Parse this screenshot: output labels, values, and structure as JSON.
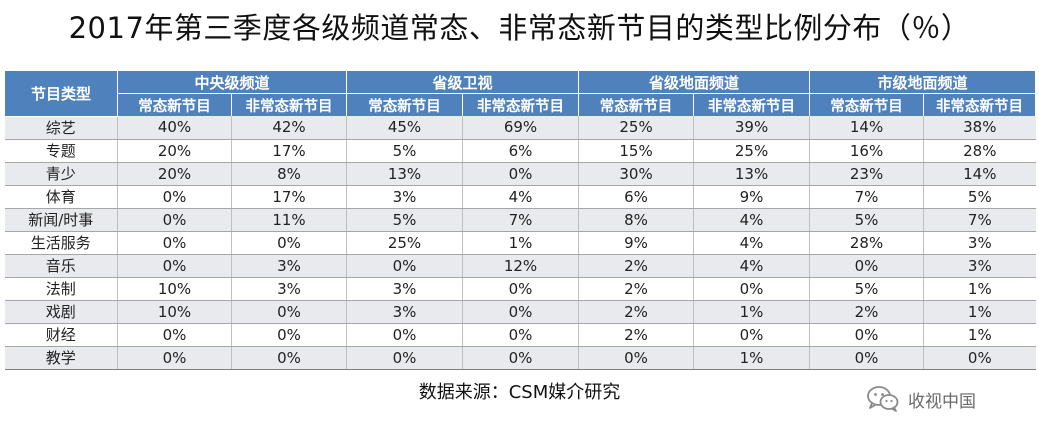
{
  "title": "2017年第三季度各级频道常态、非常态新节目的类型比例分布（％）",
  "table": {
    "corner_label": "节目类型",
    "groups": [
      "中央级频道",
      "省级卫视",
      "省级地面频道",
      "市级地面频道"
    ],
    "subheaders": [
      "常态新节目",
      "非常态新节目",
      "常态新节目",
      "非常态新节目",
      "常态新节目",
      "非常态新节目",
      "常态新节目",
      "非常态新节目"
    ],
    "rows": [
      {
        "label": "综艺",
        "cells": [
          "40%",
          "42%",
          "45%",
          "69%",
          "25%",
          "39%",
          "14%",
          "38%"
        ]
      },
      {
        "label": "专题",
        "cells": [
          "20%",
          "17%",
          "5%",
          "6%",
          "15%",
          "25%",
          "16%",
          "28%"
        ]
      },
      {
        "label": "青少",
        "cells": [
          "20%",
          "8%",
          "13%",
          "0%",
          "30%",
          "13%",
          "23%",
          "14%"
        ]
      },
      {
        "label": "体育",
        "cells": [
          "0%",
          "17%",
          "3%",
          "4%",
          "6%",
          "9%",
          "7%",
          "5%"
        ]
      },
      {
        "label": "新闻/时事",
        "cells": [
          "0%",
          "11%",
          "5%",
          "7%",
          "8%",
          "4%",
          "5%",
          "7%"
        ]
      },
      {
        "label": "生活服务",
        "cells": [
          "0%",
          "0%",
          "25%",
          "1%",
          "9%",
          "4%",
          "28%",
          "3%"
        ]
      },
      {
        "label": "音乐",
        "cells": [
          "0%",
          "3%",
          "0%",
          "12%",
          "2%",
          "4%",
          "0%",
          "3%"
        ]
      },
      {
        "label": "法制",
        "cells": [
          "10%",
          "3%",
          "3%",
          "0%",
          "2%",
          "0%",
          "5%",
          "1%"
        ]
      },
      {
        "label": "戏剧",
        "cells": [
          "10%",
          "0%",
          "3%",
          "0%",
          "2%",
          "1%",
          "2%",
          "1%"
        ]
      },
      {
        "label": "财经",
        "cells": [
          "0%",
          "0%",
          "0%",
          "0%",
          "2%",
          "0%",
          "0%",
          "1%"
        ]
      },
      {
        "label": "教学",
        "cells": [
          "0%",
          "0%",
          "0%",
          "0%",
          "0%",
          "1%",
          "0%",
          "0%"
        ]
      }
    ]
  },
  "chart_data": {
    "type": "table",
    "title": "2017年第三季度各级频道常态、非常态新节目的类型比例分布（％）",
    "row_header": "节目类型",
    "column_groups": [
      "中央级频道",
      "省级卫视",
      "省级地面频道",
      "市级地面频道"
    ],
    "columns": [
      "常态新节目",
      "非常态新节目"
    ],
    "categories": [
      "综艺",
      "专题",
      "青少",
      "体育",
      "新闻/时事",
      "生活服务",
      "音乐",
      "法制",
      "戏剧",
      "财经",
      "教学"
    ],
    "series": [
      {
        "name": "中央级频道 常态新节目",
        "values": [
          40,
          20,
          20,
          0,
          0,
          0,
          0,
          10,
          10,
          0,
          0
        ]
      },
      {
        "name": "中央级频道 非常态新节目",
        "values": [
          42,
          17,
          8,
          17,
          11,
          0,
          3,
          3,
          0,
          0,
          0
        ]
      },
      {
        "name": "省级卫视 常态新节目",
        "values": [
          45,
          5,
          13,
          3,
          5,
          25,
          0,
          3,
          3,
          0,
          0
        ]
      },
      {
        "name": "省级卫视 非常态新节目",
        "values": [
          69,
          6,
          0,
          4,
          7,
          1,
          12,
          0,
          0,
          0,
          0
        ]
      },
      {
        "name": "省级地面频道 常态新节目",
        "values": [
          25,
          15,
          30,
          6,
          8,
          9,
          2,
          2,
          2,
          2,
          0
        ]
      },
      {
        "name": "省级地面频道 非常态新节目",
        "values": [
          39,
          25,
          13,
          9,
          4,
          4,
          4,
          0,
          1,
          0,
          1
        ]
      },
      {
        "name": "市级地面频道 常态新节目",
        "values": [
          14,
          16,
          23,
          7,
          5,
          28,
          0,
          5,
          2,
          0,
          0
        ]
      },
      {
        "name": "市级地面频道 非常态新节目",
        "values": [
          38,
          28,
          14,
          5,
          7,
          3,
          3,
          1,
          1,
          1,
          0
        ]
      }
    ]
  },
  "source_label": "数据来源：CSM媒介研究",
  "watermark": {
    "text": "收视中国",
    "icon": "wechat-icon"
  },
  "colors": {
    "header_bg": "#4f81bd",
    "header_text": "#ffffff",
    "row_stripe": "#e9eaee"
  }
}
